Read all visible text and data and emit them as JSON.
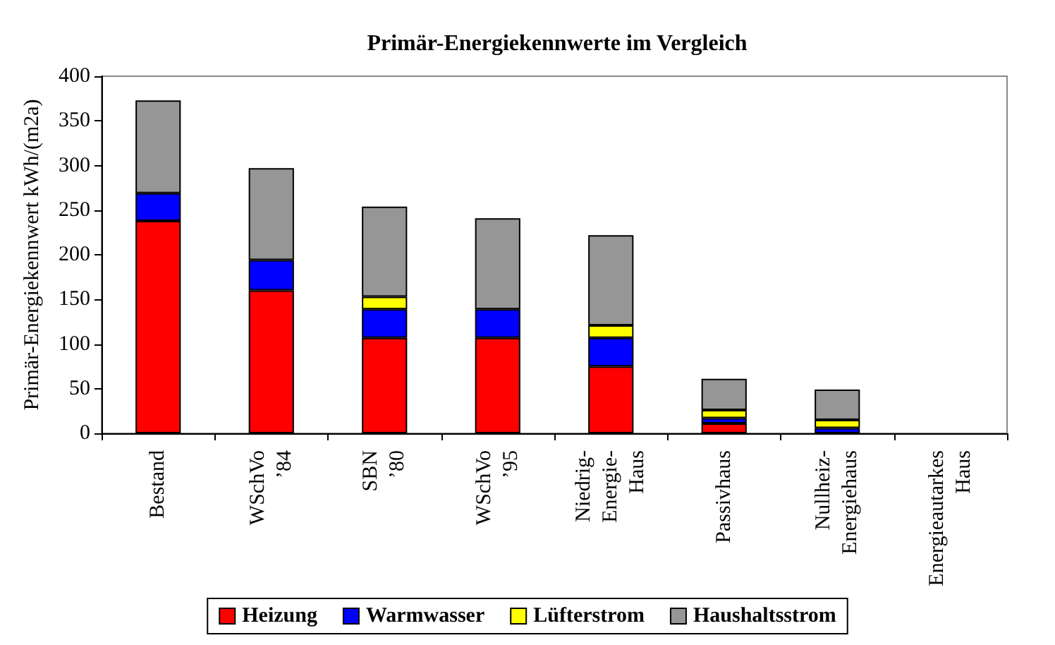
{
  "chart_data": {
    "type": "bar",
    "title": "Primär-Energiekennwerte im Vergleich",
    "ylabel": "Primär-Energiekennwert kWh/(m2a)",
    "categories": [
      "Bestand",
      "WSchVo ’84",
      "SBN ’80",
      "WSchVo ’95",
      "Niedrig-Energie-Haus",
      "Passivhaus",
      "Nullheiz-Energiehaus",
      "Energieautarkes Haus"
    ],
    "stacked": true,
    "series": [
      {
        "name": "Heizung",
        "color": "#ff0000",
        "values": [
          238,
          160,
          107,
          107,
          75,
          11,
          0,
          0
        ]
      },
      {
        "name": "Warmwasser",
        "color": "#0000ff",
        "values": [
          31,
          34,
          32,
          32,
          32,
          6,
          6,
          0
        ]
      },
      {
        "name": "Lüfterstrom",
        "color": "#ffff00",
        "values": [
          0,
          0,
          14,
          0,
          14,
          9,
          9,
          0
        ]
      },
      {
        "name": "Haushaltsstrom",
        "color": "#969696",
        "values": [
          104,
          103,
          101,
          102,
          101,
          35,
          34,
          0
        ]
      }
    ],
    "ylim": [
      0,
      400
    ],
    "yticks": [
      0,
      50,
      100,
      150,
      200,
      250,
      300,
      350,
      400
    ],
    "grid": false,
    "legend": "bottom"
  }
}
